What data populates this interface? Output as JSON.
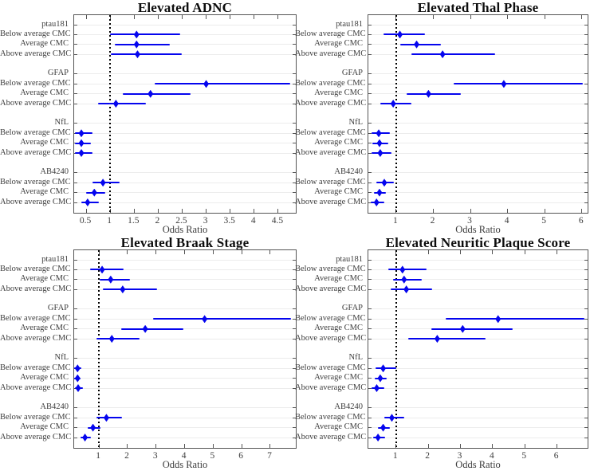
{
  "figure_name": "CMC biomarker odds-ratio forest plots",
  "accent_color": "#0505ee",
  "reference_line_color": "#000000",
  "chart_data": [
    {
      "type": "scatter",
      "subtype": "forest-plot",
      "title": "Elevated ADNC",
      "xlabel": "Odds Ratio",
      "xlim": [
        0.25,
        4.9
      ],
      "xticks": [
        0.5,
        1,
        1.5,
        2,
        2.5,
        3,
        3.5,
        4,
        4.5
      ],
      "reference_line": 1,
      "grid": true,
      "groups": [
        {
          "name": "ptau181",
          "rows": [
            {
              "label": "Below average CMC",
              "or": 1.55,
              "lo": 1.0,
              "hi": 2.46
            },
            {
              "label": "Average CMC",
              "or": 1.55,
              "lo": 1.09,
              "hi": 2.25
            },
            {
              "label": "Above average CMC",
              "or": 1.57,
              "lo": 1.02,
              "hi": 2.5
            }
          ]
        },
        {
          "name": "GFAP",
          "rows": [
            {
              "label": "Below average CMC",
              "or": 3.0,
              "lo": 1.93,
              "hi": 4.75
            },
            {
              "label": "Average CMC",
              "or": 1.84,
              "lo": 1.26,
              "hi": 2.68
            },
            {
              "label": "Above average CMC",
              "or": 1.12,
              "lo": 0.74,
              "hi": 1.75
            }
          ]
        },
        {
          "name": "NfL",
          "rows": [
            {
              "label": "Below average CMC",
              "or": 0.4,
              "lo": 0.26,
              "hi": 0.63
            },
            {
              "label": "Average CMC",
              "or": 0.4,
              "lo": 0.26,
              "hi": 0.6
            },
            {
              "label": "Above average CMC",
              "or": 0.4,
              "lo": 0.26,
              "hi": 0.64
            }
          ]
        },
        {
          "name": "AB4240",
          "rows": [
            {
              "label": "Below average CMC",
              "or": 0.85,
              "lo": 0.63,
              "hi": 1.2
            },
            {
              "label": "Average CMC",
              "or": 0.67,
              "lo": 0.5,
              "hi": 0.9
            },
            {
              "label": "Above average CMC",
              "or": 0.53,
              "lo": 0.4,
              "hi": 0.77
            }
          ]
        }
      ]
    },
    {
      "type": "scatter",
      "subtype": "forest-plot",
      "title": "Elevated Thal Phase",
      "xlabel": "Odds Ratio",
      "xlim": [
        0.25,
        6.2
      ],
      "xticks": [
        1,
        2,
        3,
        4,
        5,
        6
      ],
      "reference_line": 1,
      "grid": true,
      "groups": [
        {
          "name": "ptau181",
          "rows": [
            {
              "label": "Below average CMC",
              "or": 1.1,
              "lo": 0.66,
              "hi": 1.77
            },
            {
              "label": "Average CMC",
              "or": 1.55,
              "lo": 1.1,
              "hi": 2.21
            },
            {
              "label": "Above average CMC",
              "or": 2.25,
              "lo": 1.4,
              "hi": 3.66
            }
          ]
        },
        {
          "name": "GFAP",
          "rows": [
            {
              "label": "Below average CMC",
              "or": 3.9,
              "lo": 2.55,
              "hi": 6.02
            },
            {
              "label": "Average CMC",
              "or": 1.87,
              "lo": 1.28,
              "hi": 2.74
            },
            {
              "label": "Above average CMC",
              "or": 0.92,
              "lo": 0.57,
              "hi": 1.4
            }
          ]
        },
        {
          "name": "NfL",
          "rows": [
            {
              "label": "Below average CMC",
              "or": 0.53,
              "lo": 0.34,
              "hi": 0.83
            },
            {
              "label": "Average CMC",
              "or": 0.55,
              "lo": 0.36,
              "hi": 0.79
            },
            {
              "label": "Above average CMC",
              "or": 0.57,
              "lo": 0.34,
              "hi": 0.87
            }
          ]
        },
        {
          "name": "AB4240",
          "rows": [
            {
              "label": "Below average CMC",
              "or": 0.68,
              "lo": 0.47,
              "hi": 0.94
            },
            {
              "label": "Average CMC",
              "or": 0.55,
              "lo": 0.41,
              "hi": 0.73
            },
            {
              "label": "Above average CMC",
              "or": 0.47,
              "lo": 0.32,
              "hi": 0.68
            }
          ]
        }
      ]
    },
    {
      "type": "scatter",
      "subtype": "forest-plot",
      "title": "Elevated Braak Stage",
      "xlabel": "Odds Ratio",
      "xlim": [
        0.13,
        7.95
      ],
      "xticks": [
        1,
        2,
        3,
        4,
        5,
        6,
        7
      ],
      "reference_line": 1,
      "grid": true,
      "groups": [
        {
          "name": "ptau181",
          "rows": [
            {
              "label": "Below average CMC",
              "or": 1.11,
              "lo": 0.68,
              "hi": 1.86
            },
            {
              "label": "Average CMC",
              "or": 1.41,
              "lo": 1.02,
              "hi": 2.08
            },
            {
              "label": "Above average CMC",
              "or": 1.83,
              "lo": 1.13,
              "hi": 3.04
            }
          ]
        },
        {
          "name": "GFAP",
          "rows": [
            {
              "label": "Below average CMC",
              "or": 4.7,
              "lo": 2.9,
              "hi": 7.73
            },
            {
              "label": "Average CMC",
              "or": 2.62,
              "lo": 1.78,
              "hi": 3.96
            },
            {
              "label": "Above average CMC",
              "or": 1.45,
              "lo": 0.92,
              "hi": 2.42
            }
          ]
        },
        {
          "name": "NfL",
          "rows": [
            {
              "label": "Below average CMC",
              "or": 0.25,
              "lo": 0.14,
              "hi": 0.37
            },
            {
              "label": "Average CMC",
              "or": 0.25,
              "lo": 0.14,
              "hi": 0.35
            },
            {
              "label": "Above average CMC",
              "or": 0.27,
              "lo": 0.15,
              "hi": 0.45
            }
          ]
        },
        {
          "name": "AB4240",
          "rows": [
            {
              "label": "Below average CMC",
              "or": 1.26,
              "lo": 0.9,
              "hi": 1.8
            },
            {
              "label": "Average CMC",
              "or": 0.79,
              "lo": 0.6,
              "hi": 1.04
            },
            {
              "label": "Above average CMC",
              "or": 0.51,
              "lo": 0.35,
              "hi": 0.71
            }
          ]
        }
      ]
    },
    {
      "type": "scatter",
      "subtype": "forest-plot",
      "title": "Elevated Neuritic Plaque Score",
      "xlabel": "Odds Ratio",
      "xlim": [
        0.14,
        7.0
      ],
      "xticks": [
        1,
        2,
        3,
        4,
        5,
        6
      ],
      "reference_line": 1,
      "grid": true,
      "groups": [
        {
          "name": "ptau181",
          "rows": [
            {
              "label": "Below average CMC",
              "or": 1.2,
              "lo": 0.77,
              "hi": 1.94
            },
            {
              "label": "Average CMC",
              "or": 1.25,
              "lo": 0.92,
              "hi": 1.8
            },
            {
              "label": "Above average CMC",
              "or": 1.32,
              "lo": 0.84,
              "hi": 2.11
            }
          ]
        },
        {
          "name": "GFAP",
          "rows": [
            {
              "label": "Below average CMC",
              "or": 4.17,
              "lo": 2.54,
              "hi": 6.86
            },
            {
              "label": "Average CMC",
              "or": 3.07,
              "lo": 2.09,
              "hi": 4.62
            },
            {
              "label": "Above average CMC",
              "or": 2.28,
              "lo": 1.39,
              "hi": 3.77
            }
          ]
        },
        {
          "name": "NfL",
          "rows": [
            {
              "label": "Below average CMC",
              "or": 0.6,
              "lo": 0.36,
              "hi": 1.0
            },
            {
              "label": "Average CMC",
              "or": 0.51,
              "lo": 0.33,
              "hi": 0.71
            },
            {
              "label": "Above average CMC",
              "or": 0.4,
              "lo": 0.23,
              "hi": 0.63
            }
          ]
        },
        {
          "name": "AB4240",
          "rows": [
            {
              "label": "Below average CMC",
              "or": 0.87,
              "lo": 0.63,
              "hi": 1.26
            },
            {
              "label": "Average CMC",
              "or": 0.6,
              "lo": 0.44,
              "hi": 0.81
            },
            {
              "label": "Above average CMC",
              "or": 0.44,
              "lo": 0.28,
              "hi": 0.65
            }
          ]
        }
      ]
    }
  ]
}
